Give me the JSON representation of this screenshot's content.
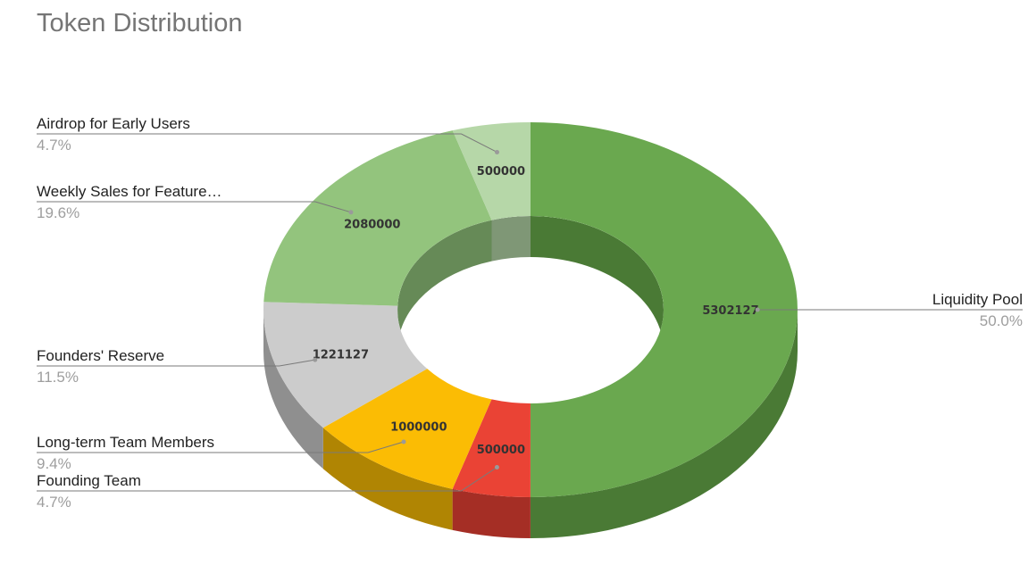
{
  "chart_data": {
    "type": "pie",
    "donut": true,
    "three_d": true,
    "title": "Token Distribution",
    "legend": "labeled",
    "slices": [
      {
        "label": "Liquidity Pool",
        "value": 5302127,
        "value_label": "5302127",
        "percent_label": "50.0%",
        "color": "#6aa84f",
        "side_color": "#4a7a35"
      },
      {
        "label": "Founding Team",
        "value": 500000,
        "value_label": "500000",
        "percent_label": "4.7%",
        "color": "#ea4335",
        "side_color": "#a52e25"
      },
      {
        "label": "Long-term Team Members",
        "value": 1000000,
        "value_label": "1000000",
        "percent_label": "9.4%",
        "color": "#fbbc04",
        "side_color": "#b08503"
      },
      {
        "label": "Founders' Reserve",
        "value": 1221127,
        "value_label": "1221127",
        "percent_label": "11.5%",
        "color": "#cccccc",
        "side_color": "#8f8f8f"
      },
      {
        "label": "Weekly Sales for Feature…",
        "value": 2080000,
        "value_label": "2080000",
        "percent_label": "19.6%",
        "color": "#93c47d",
        "side_color": "#668a57"
      },
      {
        "label": "Airdrop for Early Users",
        "value": 500000,
        "value_label": "500000",
        "percent_label": "4.7%",
        "color": "#b6d7a8",
        "side_color": "#7f9776"
      }
    ]
  }
}
